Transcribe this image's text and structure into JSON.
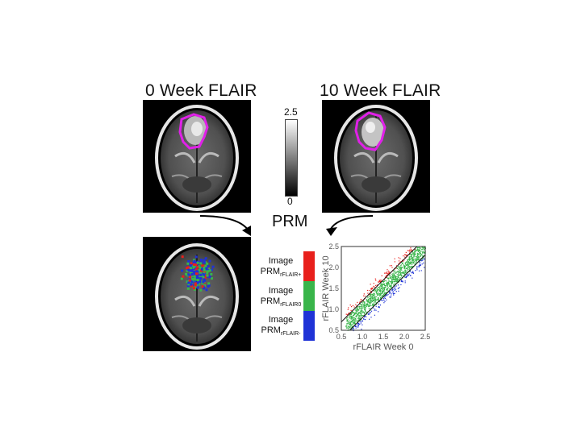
{
  "panels": {
    "week0_title": "0 Week FLAIR",
    "week10_title": "10 Week FLAIR"
  },
  "colorbar": {
    "max_label": "2.5",
    "min_label": "0"
  },
  "prm_label": "PRM",
  "legend": [
    {
      "line1": "Image",
      "line2": "PRM",
      "sub": "rFLAIR+",
      "color": "#e8201c"
    },
    {
      "line1": "Image",
      "line2": "PRM",
      "sub": "rFLAIR0",
      "color": "#39b54a"
    },
    {
      "line1": "Image",
      "line2": "PRM",
      "sub": "rFLAIR-",
      "color": "#1f33d6"
    }
  ],
  "colors": {
    "roi_outline": "#e020e8",
    "increase": "#e8201c",
    "stable": "#39b54a",
    "decrease": "#1f33d6"
  },
  "chart_data": {
    "type": "scatter",
    "xlabel": "rFLAIR Week 0",
    "ylabel": "rFLAIR Week 10",
    "xlim": [
      0.5,
      2.5
    ],
    "ylim": [
      0.5,
      2.5
    ],
    "xticks": [
      "0.5",
      "1.0",
      "1.5",
      "2.0",
      "2.5"
    ],
    "yticks": [
      "0.5",
      "1.0",
      "1.5",
      "2.0",
      "2.5"
    ],
    "threshold_lines": [
      {
        "slope": 1,
        "intercept": 0.2
      },
      {
        "slope": 1,
        "intercept": -0.2
      }
    ],
    "series": [
      {
        "color": "#e8201c",
        "region": "above upper threshold line"
      },
      {
        "color": "#39b54a",
        "region": "between threshold lines"
      },
      {
        "color": "#1f33d6",
        "region": "below lower threshold line"
      }
    ]
  }
}
